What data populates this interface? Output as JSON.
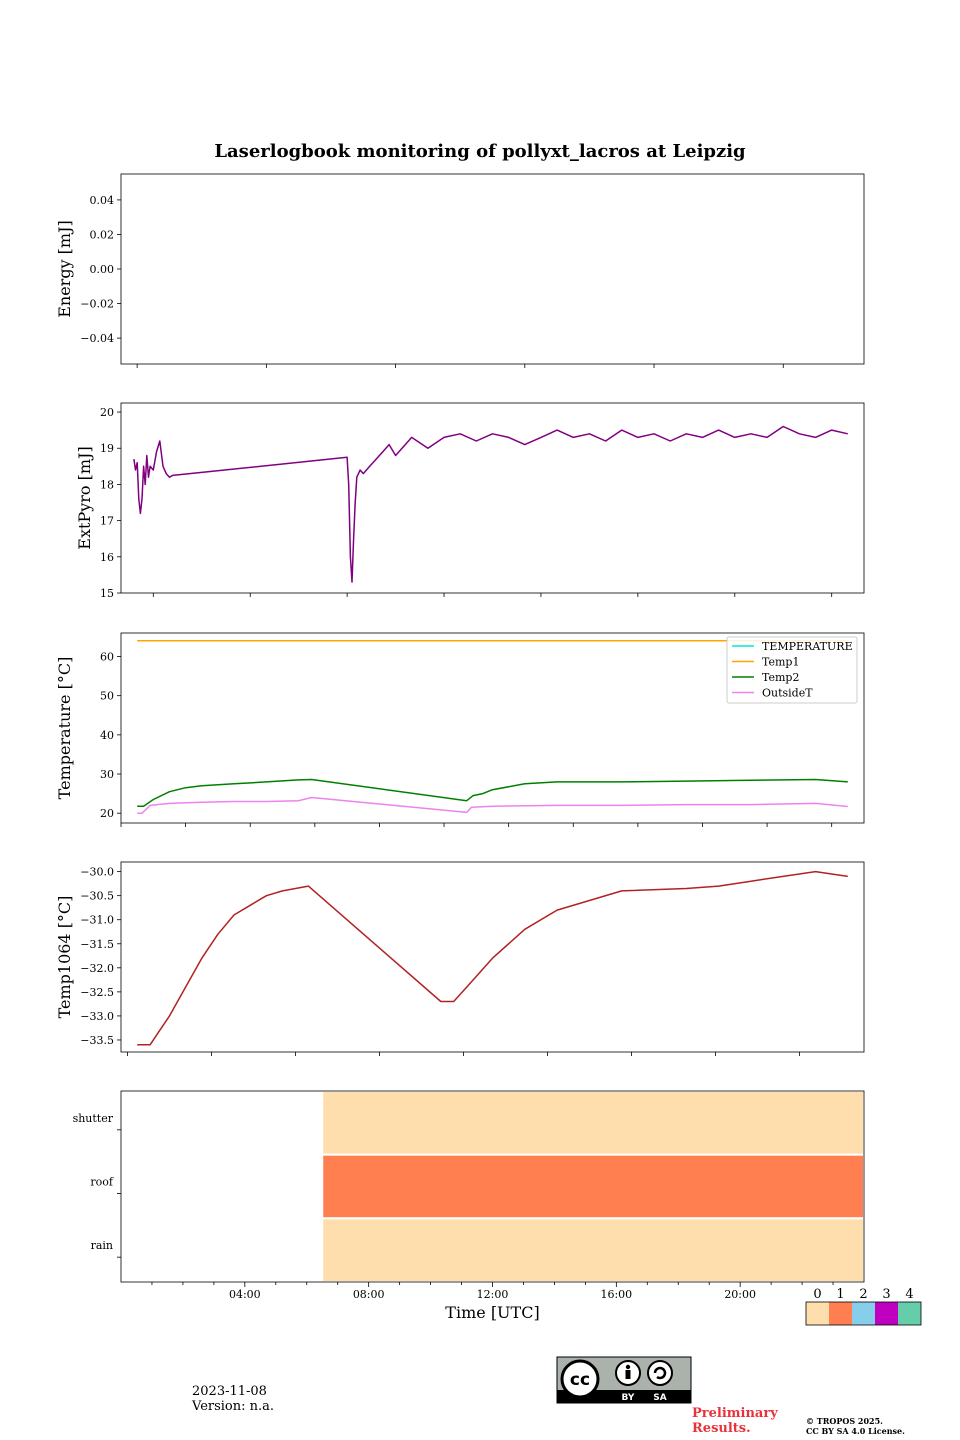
{
  "title": "Laserlogbook monitoring of pollyxt_lacros at Leipzig",
  "footer": {
    "date": "2023-11-08",
    "version": "Version: n.a.",
    "preliminary_line1": "Preliminary",
    "preliminary_line2": "Results.",
    "copyright_line1": "© TROPOS 2025.",
    "copyright_line2": "CC BY SA 4.0 License.",
    "license_logo_text": [
      "BY",
      "SA"
    ]
  },
  "chart_data": [
    {
      "type": "line",
      "name": "energy",
      "ylabel": "Energy [mJ]",
      "ylim": [
        -0.055,
        0.055
      ],
      "yticks": [
        0.04,
        0.02,
        0.0,
        -0.02,
        -0.04
      ],
      "ytick_labels": [
        "0.04",
        "0.02",
        "0.00",
        "−0.02",
        "−0.04"
      ],
      "series": []
    },
    {
      "type": "line",
      "name": "extpyro",
      "ylabel": "ExtPyro [mJ]",
      "ylim": [
        15,
        20.25
      ],
      "yticks": [
        20,
        19,
        18,
        17,
        16,
        15
      ],
      "series": [
        {
          "color": "#800080",
          "x": [
            0.9,
            0.95,
            1.0,
            1.05,
            1.1,
            1.15,
            1.2,
            1.25,
            1.3,
            1.35,
            1.4,
            1.5,
            1.6,
            1.7,
            1.8,
            1.9,
            2.0,
            2.1,
            7.5,
            7.55,
            7.6,
            7.65,
            7.7,
            7.75,
            7.8,
            7.9,
            8.0,
            8.2,
            8.4,
            8.6,
            8.8,
            9.0,
            9.5,
            10.0,
            10.5,
            11.0,
            11.5,
            12.0,
            12.5,
            13.0,
            13.5,
            14.0,
            14.5,
            15.0,
            15.5,
            16.0,
            16.5,
            17.0,
            17.5,
            18.0,
            18.5,
            19.0,
            19.5,
            20.0,
            20.5,
            21.0,
            21.5,
            22.0,
            22.5,
            23.0
          ],
          "y": [
            18.7,
            18.4,
            18.6,
            17.6,
            17.2,
            17.6,
            18.5,
            18.0,
            18.8,
            18.2,
            18.5,
            18.4,
            18.9,
            19.2,
            18.5,
            18.3,
            18.2,
            18.25,
            18.75,
            18.0,
            16.0,
            15.3,
            16.5,
            17.5,
            18.2,
            18.4,
            18.3,
            18.5,
            18.7,
            18.9,
            19.1,
            18.8,
            19.3,
            19.0,
            19.3,
            19.4,
            19.2,
            19.4,
            19.3,
            19.1,
            19.3,
            19.5,
            19.3,
            19.4,
            19.2,
            19.5,
            19.3,
            19.4,
            19.2,
            19.4,
            19.3,
            19.5,
            19.3,
            19.4,
            19.3,
            19.6,
            19.4,
            19.3,
            19.5,
            19.4
          ]
        }
      ]
    },
    {
      "type": "line",
      "name": "temperature",
      "ylabel": "Temperature [°C]",
      "ylim": [
        17.5,
        66
      ],
      "yticks": [
        60,
        50,
        40,
        30,
        20
      ],
      "legend": "top-right",
      "series": [
        {
          "name": "TEMPERATURE",
          "color": "#00e5e5",
          "x": [],
          "y": []
        },
        {
          "name": "Temp1",
          "color": "#ffa500",
          "x": [
            1.0,
            23.0
          ],
          "y": [
            64.0,
            64.0
          ]
        },
        {
          "name": "Temp2",
          "color": "#008000",
          "x": [
            1.0,
            1.2,
            1.5,
            2.0,
            2.5,
            3.0,
            4.0,
            5.0,
            6.0,
            6.4,
            11.2,
            11.4,
            11.7,
            12.0,
            13.0,
            14.0,
            16.0,
            18.0,
            20.0,
            22.0,
            23.0
          ],
          "y": [
            21.8,
            21.8,
            23.5,
            25.5,
            26.5,
            27.0,
            27.5,
            28.0,
            28.5,
            28.6,
            23.2,
            24.5,
            25.0,
            26.0,
            27.5,
            28.0,
            28.0,
            28.2,
            28.4,
            28.6,
            28.0
          ]
        },
        {
          "name": "OutsideT",
          "color": "#ee82ee",
          "x": [
            1.0,
            1.15,
            1.4,
            2.0,
            3.0,
            4.0,
            5.0,
            6.0,
            6.4,
            11.2,
            11.35,
            12.0,
            14.0,
            16.0,
            18.0,
            20.0,
            22.0,
            23.0
          ],
          "y": [
            20.0,
            20.0,
            22.0,
            22.5,
            22.8,
            23.0,
            23.0,
            23.2,
            24.0,
            20.2,
            21.5,
            21.8,
            22.0,
            22.0,
            22.2,
            22.2,
            22.5,
            21.7
          ]
        }
      ]
    },
    {
      "type": "line",
      "name": "temp1064",
      "ylabel": "Temp1064 [°C]",
      "ylim": [
        -33.75,
        -29.8
      ],
      "yticks": [
        -30.0,
        -30.5,
        -31.0,
        -31.5,
        -32.0,
        -32.5,
        -33.0,
        -33.5
      ],
      "ytick_labels": [
        "−30.0",
        "−30.5",
        "−31.0",
        "−31.5",
        "−32.0",
        "−32.5",
        "−33.0",
        "−33.5"
      ],
      "series": [
        {
          "color": "#b22222",
          "x": [
            1.0,
            1.4,
            1.6,
            2.0,
            2.5,
            3.0,
            3.5,
            4.0,
            4.5,
            5.0,
            5.5,
            6.3,
            10.4,
            10.8,
            11.2,
            12.0,
            13.0,
            14.0,
            15.0,
            16.0,
            18.0,
            19.0,
            20.0,
            21.0,
            22.0,
            23.0
          ],
          "y": [
            -33.6,
            -33.6,
            -33.4,
            -33.0,
            -32.4,
            -31.8,
            -31.3,
            -30.9,
            -30.7,
            -30.5,
            -30.4,
            -30.3,
            -32.7,
            -32.7,
            -32.4,
            -31.8,
            -31.2,
            -30.8,
            -30.6,
            -30.4,
            -30.35,
            -30.3,
            -30.2,
            -30.1,
            -30.0,
            -30.1
          ]
        }
      ]
    },
    {
      "type": "heatmap",
      "name": "status",
      "xlabel": "Time [UTC]",
      "xlim": [
        0,
        24
      ],
      "xticks": [
        "04:00",
        "08:00",
        "12:00",
        "16:00",
        "20:00"
      ],
      "xtick_values": [
        4,
        8,
        12,
        16,
        20
      ],
      "rows": [
        {
          "label": "shutter",
          "start": 6.5,
          "end": 24,
          "value": 0
        },
        {
          "label": "roof",
          "start": 6.5,
          "end": 24,
          "value": 1
        },
        {
          "label": "rain",
          "start": 6.5,
          "end": 24,
          "value": 0
        }
      ],
      "colorbar": {
        "labels": [
          "0",
          "1",
          "2",
          "3",
          "4"
        ],
        "colors": [
          "#ffdead",
          "#ff7f50",
          "#87ceeb",
          "#c000c0",
          "#66cdaa"
        ]
      }
    }
  ]
}
